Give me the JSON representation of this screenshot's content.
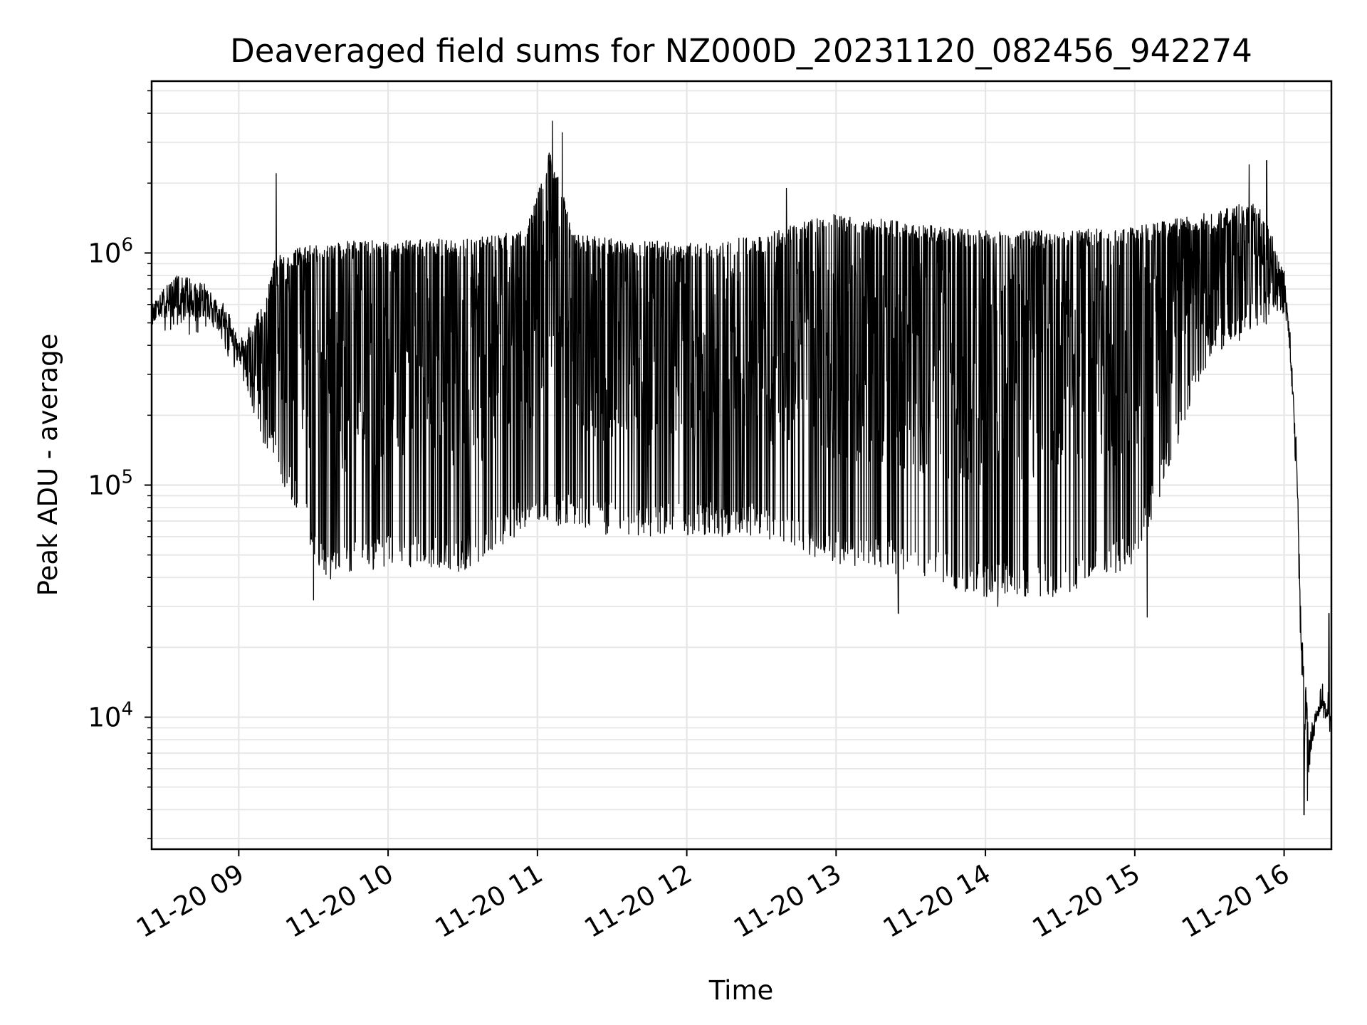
{
  "chart_data": {
    "type": "line",
    "title": "Deaveraged field sums for NZ000D_20231120_082456_942274",
    "xlabel": "Time",
    "ylabel": "Peak ADU - average",
    "y_scale": "log",
    "ylim": [
      2700,
      5500000
    ],
    "xlim": [
      "2023-11-20T08:25:00",
      "2023-11-20T16:19:00"
    ],
    "grid": true,
    "x_ticks": [
      "11-20 09",
      "11-20 10",
      "11-20 11",
      "11-20 12",
      "11-20 13",
      "11-20 14",
      "11-20 15",
      "11-20 16"
    ],
    "y_ticks": [
      {
        "value": 10000,
        "base": "10",
        "exp": "4"
      },
      {
        "value": 100000,
        "base": "10",
        "exp": "5"
      },
      {
        "value": 1000000,
        "base": "10",
        "exp": "6"
      }
    ],
    "line_color": "#000000",
    "series": [
      {
        "upper_envelope": [
          [
            "2023-11-20T08:25:00",
            620000
          ],
          [
            "2023-11-20T08:35:00",
            800000
          ],
          [
            "2023-11-20T08:45:00",
            760000
          ],
          [
            "2023-11-20T08:55:00",
            600000
          ],
          [
            "2023-11-20T09:00:00",
            430000
          ],
          [
            "2023-11-20T09:10:00",
            600000
          ],
          [
            "2023-11-20T09:15:00",
            1000000
          ],
          [
            "2023-11-20T09:30:00",
            1100000
          ],
          [
            "2023-11-20T10:00:00",
            1150000
          ],
          [
            "2023-11-20T10:30:00",
            1150000
          ],
          [
            "2023-11-20T10:55:00",
            1250000
          ],
          [
            "2023-11-20T11:05:00",
            2800000
          ],
          [
            "2023-11-20T11:15:00",
            1200000
          ],
          [
            "2023-11-20T12:00:00",
            1100000
          ],
          [
            "2023-11-20T12:30:00",
            1200000
          ],
          [
            "2023-11-20T13:00:00",
            1500000
          ],
          [
            "2023-11-20T13:30:00",
            1350000
          ],
          [
            "2023-11-20T14:00:00",
            1250000
          ],
          [
            "2023-11-20T14:30:00",
            1250000
          ],
          [
            "2023-11-20T15:00:00",
            1300000
          ],
          [
            "2023-11-20T15:30:00",
            1500000
          ],
          [
            "2023-11-20T15:50:00",
            1700000
          ],
          [
            "2023-11-20T16:00:00",
            850000
          ],
          [
            "2023-11-20T16:02:00",
            500000
          ],
          [
            "2023-11-20T16:05:00",
            150000
          ],
          [
            "2023-11-20T16:07:00",
            25000
          ],
          [
            "2023-11-20T16:10:00",
            9000
          ],
          [
            "2023-11-20T16:15:00",
            13000
          ],
          [
            "2023-11-20T16:19:00",
            10000
          ]
        ],
        "lower_envelope": [
          [
            "2023-11-20T08:25:00",
            470000
          ],
          [
            "2023-11-20T08:50:00",
            430000
          ],
          [
            "2023-11-20T09:00:00",
            300000
          ],
          [
            "2023-11-20T09:10:00",
            150000
          ],
          [
            "2023-11-20T09:20:00",
            90000
          ],
          [
            "2023-11-20T09:35:00",
            38000
          ],
          [
            "2023-11-20T10:00:00",
            45000
          ],
          [
            "2023-11-20T10:30:00",
            42000
          ],
          [
            "2023-11-20T11:00:00",
            70000
          ],
          [
            "2023-11-20T11:30:00",
            60000
          ],
          [
            "2023-11-20T12:00:00",
            60000
          ],
          [
            "2023-11-20T12:30:00",
            60000
          ],
          [
            "2023-11-20T13:00:00",
            45000
          ],
          [
            "2023-11-20T13:30:00",
            40000
          ],
          [
            "2023-11-20T14:00:00",
            33000
          ],
          [
            "2023-11-20T14:30:00",
            33000
          ],
          [
            "2023-11-20T15:00:00",
            45000
          ],
          [
            "2023-11-20T15:30:00",
            350000
          ],
          [
            "2023-11-20T16:00:00",
            550000
          ],
          [
            "2023-11-20T16:02:00",
            400000
          ],
          [
            "2023-11-20T16:05:00",
            100000
          ],
          [
            "2023-11-20T16:07:00",
            13000
          ],
          [
            "2023-11-20T16:09:00",
            4000
          ],
          [
            "2023-11-20T16:12:00",
            7000
          ],
          [
            "2023-11-20T16:15:00",
            10000
          ],
          [
            "2023-11-20T16:19:00",
            9000
          ]
        ],
        "spikes": [
          [
            "2023-11-20T09:15:00",
            2200000
          ],
          [
            "2023-11-20T09:30:00",
            32000
          ],
          [
            "2023-11-20T11:06:00",
            3700000
          ],
          [
            "2023-11-20T11:10:00",
            3300000
          ],
          [
            "2023-11-20T12:40:00",
            1900000
          ],
          [
            "2023-11-20T13:25:00",
            28000
          ],
          [
            "2023-11-20T14:05:00",
            30000
          ],
          [
            "2023-11-20T15:05:00",
            27000
          ],
          [
            "2023-11-20T15:46:00",
            2400000
          ],
          [
            "2023-11-20T15:53:00",
            2500000
          ],
          [
            "2023-11-20T16:08:00",
            3800
          ],
          [
            "2023-11-20T16:18:00",
            28000
          ]
        ]
      }
    ]
  }
}
